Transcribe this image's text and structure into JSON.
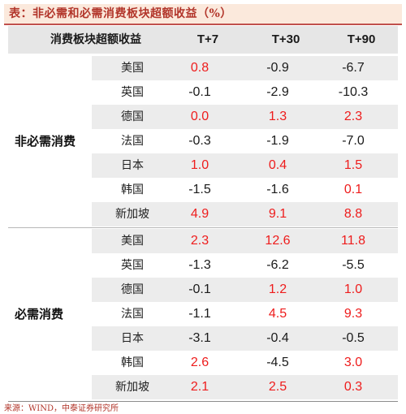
{
  "title": "表：非必需和必需消费板块超额收益（%）",
  "colors": {
    "title_bg": "#fbe9dc",
    "title_text": "#b2352a",
    "positive": "#ee1c1c",
    "negative": "#1a1a1a",
    "shade": "#ececec"
  },
  "header": {
    "col0": "消费板块超额收益",
    "col1": "T+7",
    "col2": "T+30",
    "col3": "T+90"
  },
  "groups": [
    {
      "label": "非必需消费",
      "rows": [
        {
          "country": "美国",
          "t7": "0.8",
          "t30": "-0.9",
          "t90": "-6.7"
        },
        {
          "country": "英国",
          "t7": "-0.1",
          "t30": "-2.9",
          "t90": "-10.3"
        },
        {
          "country": "德国",
          "t7": "0.0",
          "t30": "1.3",
          "t90": "2.3"
        },
        {
          "country": "法国",
          "t7": "-0.3",
          "t30": "-1.9",
          "t90": "-7.0"
        },
        {
          "country": "日本",
          "t7": "1.0",
          "t30": "0.4",
          "t90": "1.5"
        },
        {
          "country": "韩国",
          "t7": "-1.5",
          "t30": "-1.6",
          "t90": "0.1"
        },
        {
          "country": "新加坡",
          "t7": "4.9",
          "t30": "9.1",
          "t90": "8.8"
        }
      ]
    },
    {
      "label": "必需消费",
      "rows": [
        {
          "country": "美国",
          "t7": "2.3",
          "t30": "12.6",
          "t90": "11.8"
        },
        {
          "country": "英国",
          "t7": "-1.3",
          "t30": "-6.2",
          "t90": "-5.5"
        },
        {
          "country": "德国",
          "t7": "-0.1",
          "t30": "1.2",
          "t90": "1.0"
        },
        {
          "country": "法国",
          "t7": "-1.1",
          "t30": "4.5",
          "t90": "9.3"
        },
        {
          "country": "日本",
          "t7": "-3.1",
          "t30": "-0.4",
          "t90": "-0.5"
        },
        {
          "country": "韩国",
          "t7": "2.6",
          "t30": "-4.5",
          "t90": "3.0"
        },
        {
          "country": "新加坡",
          "t7": "2.1",
          "t30": "2.5",
          "t90": "0.3"
        }
      ]
    }
  ],
  "source": "来源：WIND，中泰证券研究所"
}
